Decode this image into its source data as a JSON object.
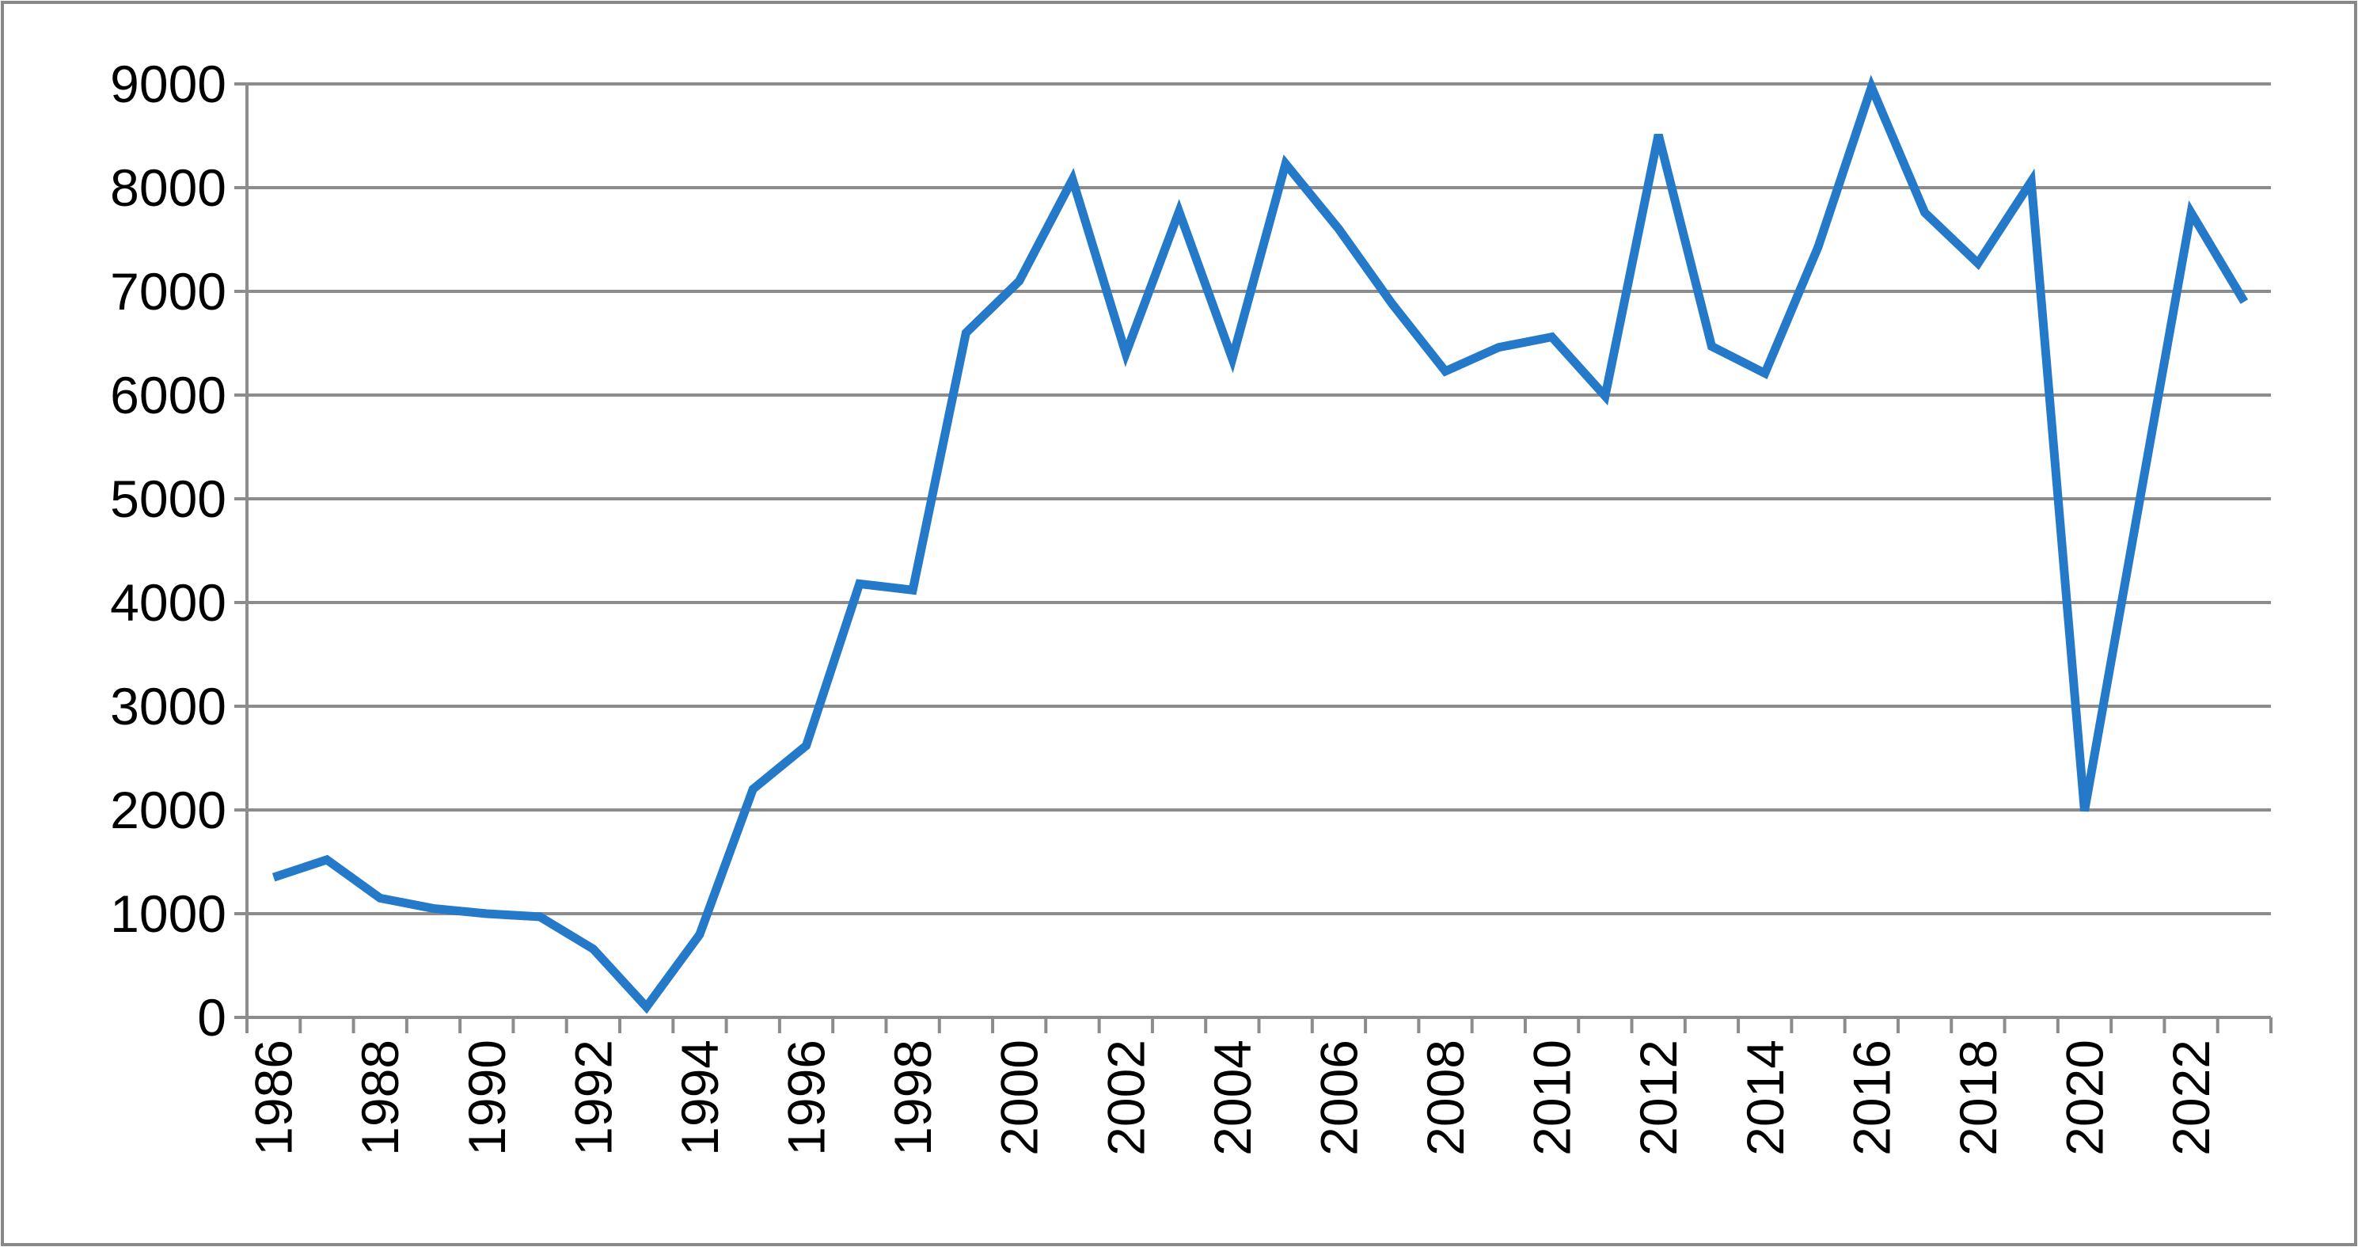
{
  "chart_data": {
    "type": "line",
    "x": [
      1986,
      1987,
      1988,
      1989,
      1990,
      1991,
      1992,
      1993,
      1994,
      1995,
      1996,
      1997,
      1998,
      1999,
      2000,
      2001,
      2002,
      2003,
      2004,
      2005,
      2006,
      2007,
      2008,
      2009,
      2010,
      2011,
      2012,
      2013,
      2014,
      2015,
      2016,
      2017,
      2018,
      2019,
      2020,
      2021,
      2022,
      2023
    ],
    "series": [
      {
        "color": "#2479c9",
        "values": [
          1350,
          1520,
          1150,
          1050,
          1000,
          970,
          660,
          100,
          800,
          2200,
          2620,
          4180,
          4120,
          6600,
          7100,
          8080,
          6400,
          7770,
          6350,
          8230,
          7600,
          6880,
          6230,
          6460,
          6560,
          5990,
          8510,
          6470,
          6210,
          7430,
          8970,
          7760,
          7270,
          8060,
          1990,
          4880,
          7760,
          6900
        ]
      }
    ],
    "xlim": [
      1985.5,
      2023.5
    ],
    "xticks": [
      1986,
      1988,
      1990,
      1992,
      1994,
      1996,
      1998,
      2000,
      2002,
      2004,
      2006,
      2008,
      2010,
      2012,
      2014,
      2016,
      2018,
      2020,
      2022
    ],
    "ylim": [
      0,
      9000
    ],
    "yticks": [
      0,
      1000,
      2000,
      3000,
      4000,
      5000,
      6000,
      7000,
      8000,
      9000
    ],
    "grid": true
  }
}
